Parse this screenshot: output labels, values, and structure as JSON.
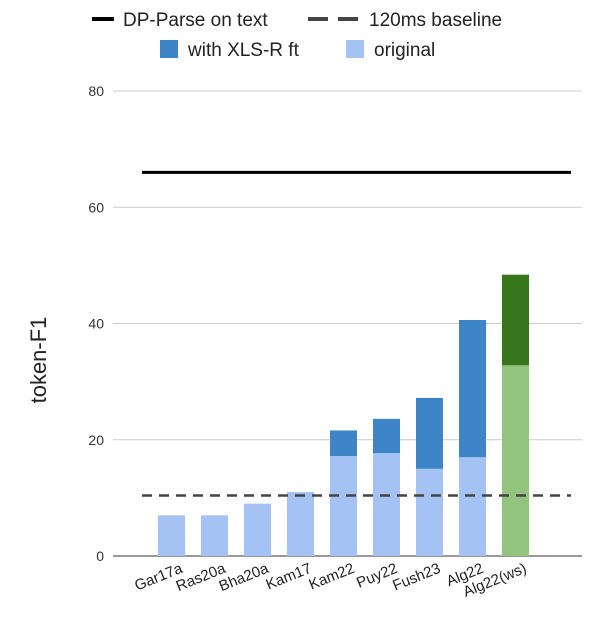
{
  "chart_data": {
    "type": "bar",
    "stacked": true,
    "ylabel": "token-F1",
    "xlabel": "",
    "ylim": [
      0,
      80
    ],
    "yticks": [
      0,
      20,
      40,
      60,
      80
    ],
    "grid": true,
    "legend_position": "top",
    "categories": [
      "Gar17a",
      "Ras20a",
      "Bha20a",
      "Kam17",
      "Kam22",
      "Puy22",
      "Fush23",
      "Alg22",
      "Alg22(ws)"
    ],
    "series": [
      {
        "name": "original",
        "values": [
          7,
          7,
          9,
          11,
          17.2,
          17.7,
          15,
          17,
          32.8
        ],
        "color": "#a4c2f4",
        "last_bar_color": "#93c47d"
      },
      {
        "name": "with XLS-R ft",
        "values": [
          0,
          0,
          0,
          0,
          4.4,
          5.9,
          12.2,
          23.6,
          15.6
        ],
        "color": "#3d85c6",
        "last_bar_color": "#38761d"
      }
    ],
    "reference_lines": [
      {
        "name": "DP-Parse on text",
        "value": 66,
        "style": "solid",
        "color": "#000000"
      },
      {
        "name": "120ms baseline",
        "value": 10.4,
        "style": "dashed",
        "color": "#444444"
      }
    ]
  }
}
